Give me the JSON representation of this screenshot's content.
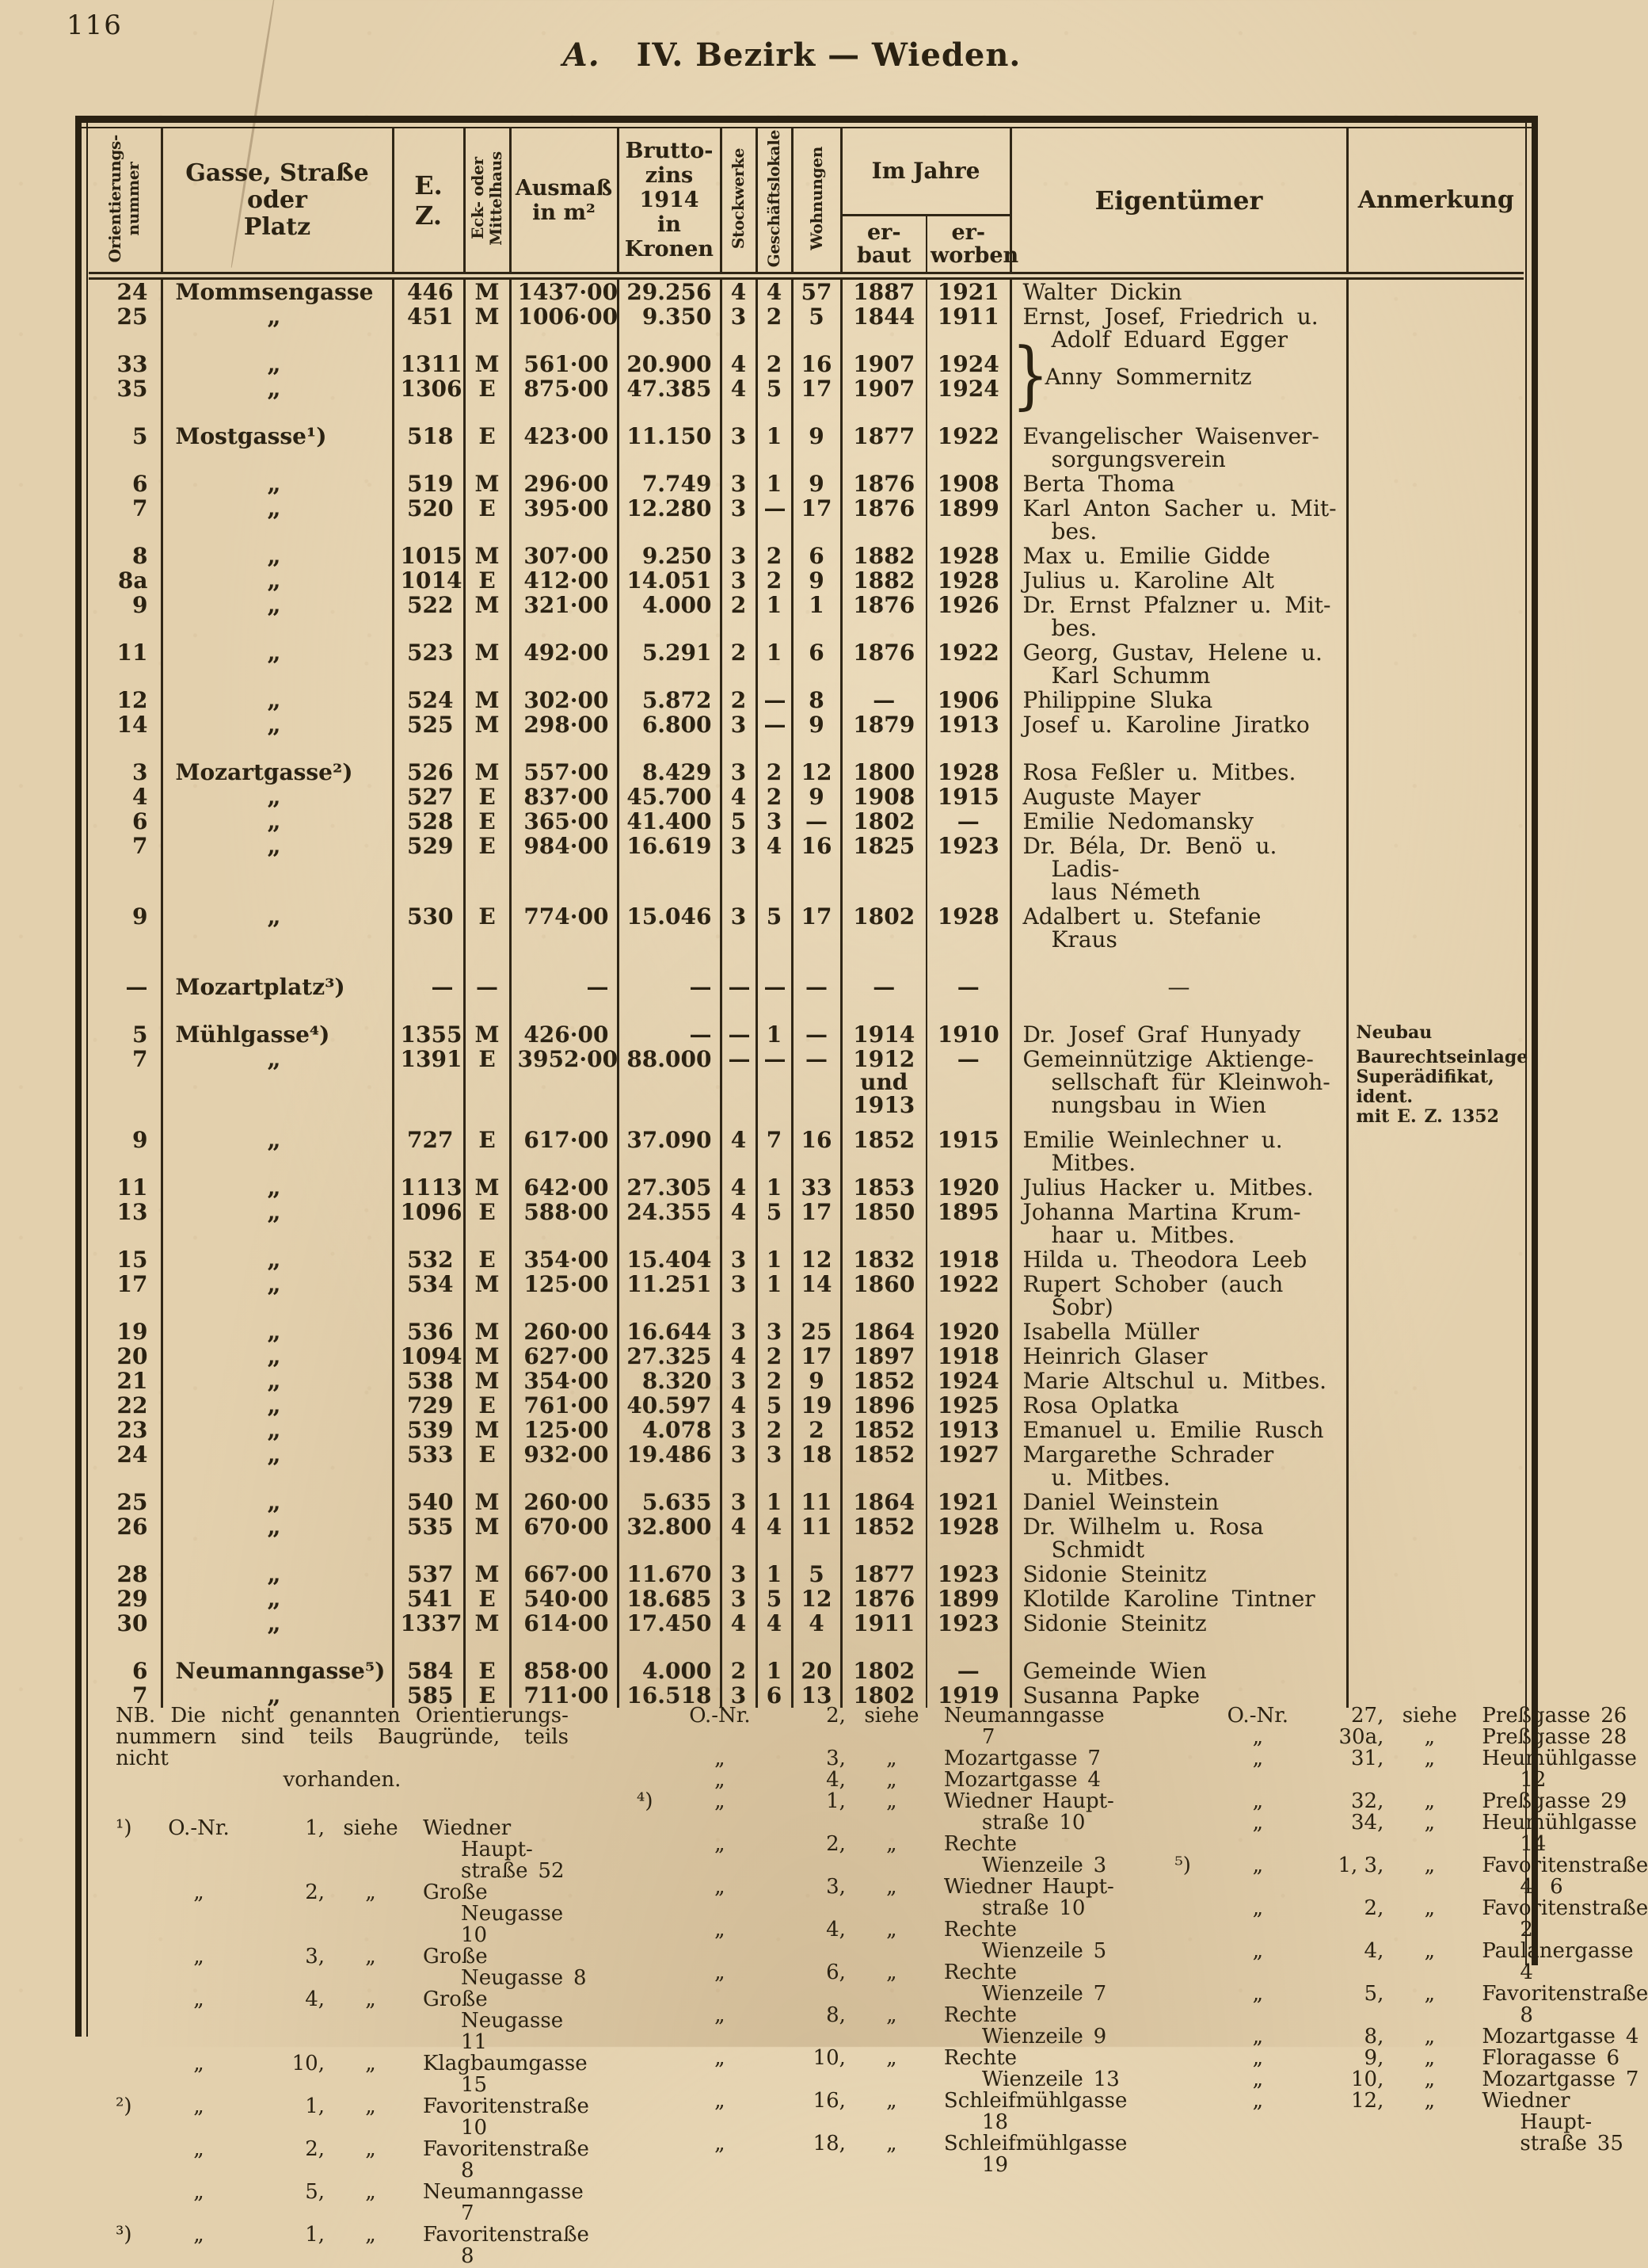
{
  "page": {
    "number": "116",
    "title_prefix": "A.",
    "title": "IV. Bezirk — Wieden."
  },
  "table": {
    "headers": {
      "onr": "Orientierungs-\nnummer",
      "street": "Gasse, Straße oder\nPlatz",
      "ez": "E. Z.",
      "eck": "Eck- oder\nMittelhaus",
      "ausmass": "Ausmaß\nin m²",
      "zins": "Brutto-\nzins 1914\nin\nKronen",
      "stock": "Stockwerke",
      "gesch": "Geschäftslokale",
      "wohn": "Wohnungen",
      "imjahre": "Im Jahre",
      "erbaut": "er-\nbaut",
      "erworben": "er-\nworben",
      "owner": "Eigentümer",
      "anm": "Anmerkung"
    },
    "rows": [
      {
        "onr": "24",
        "street": "Mommsengasse",
        "ez": "446",
        "eck": "M",
        "ausmass": "1437·00",
        "zins": "29.256",
        "st": "4",
        "gl": "4",
        "wo": "57",
        "eb": "1887",
        "ew": "1921",
        "owner": "Walter Dickin",
        "anm": ""
      },
      {
        "onr": "25",
        "street": "„",
        "ez": "451",
        "eck": "M",
        "ausmass": "1006·00",
        "zins": "9.350",
        "st": "3",
        "gl": "2",
        "wo": "5",
        "eb": "1844",
        "ew": "1911",
        "owner": "Ernst, Josef, Friedrich u.\nAdolf Eduard Egger",
        "anm": ""
      },
      {
        "onr": "33",
        "street": "„",
        "ez": "1311",
        "eck": "M",
        "ausmass": "561·00",
        "zins": "20.900",
        "st": "4",
        "gl": "2",
        "wo": "16",
        "eb": "1907",
        "ew": "1924",
        "owner": "Anny Sommernitz",
        "owner_brace": true,
        "owner_rowspan": 2,
        "anm": "",
        "anm_rowspan": 2
      },
      {
        "onr": "35",
        "street": "„",
        "ez": "1306",
        "eck": "E",
        "ausmass": "875·00",
        "zins": "47.385",
        "st": "4",
        "gl": "5",
        "wo": "17",
        "eb": "1907",
        "ew": "1924",
        "owner_skip": true,
        "anm_skip": true
      },
      {
        "gap": true,
        "onr": "5",
        "street": "Mostgasse¹)",
        "ez": "518",
        "eck": "E",
        "ausmass": "423·00",
        "zins": "11.150",
        "st": "3",
        "gl": "1",
        "wo": "9",
        "eb": "1877",
        "ew": "1922",
        "owner": "Evangelischer Waisenver-\nsorgungsverein",
        "anm": ""
      },
      {
        "onr": "6",
        "street": "„",
        "ez": "519",
        "eck": "M",
        "ausmass": "296·00",
        "zins": "7.749",
        "st": "3",
        "gl": "1",
        "wo": "9",
        "eb": "1876",
        "ew": "1908",
        "owner": "Berta Thoma",
        "anm": ""
      },
      {
        "onr": "7",
        "street": "„",
        "ez": "520",
        "eck": "E",
        "ausmass": "395·00",
        "zins": "12.280",
        "st": "3",
        "gl": "—",
        "wo": "17",
        "eb": "1876",
        "ew": "1899",
        "owner": "Karl Anton Sacher u. Mit-\nbes.",
        "anm": ""
      },
      {
        "onr": "8",
        "street": "„",
        "ez": "1015",
        "eck": "M",
        "ausmass": "307·00",
        "zins": "9.250",
        "st": "3",
        "gl": "2",
        "wo": "6",
        "eb": "1882",
        "ew": "1928",
        "owner": "Max u. Emilie Gidde",
        "anm": ""
      },
      {
        "onr": "8a",
        "street": "„",
        "ez": "1014",
        "eck": "E",
        "ausmass": "412·00",
        "zins": "14.051",
        "st": "3",
        "gl": "2",
        "wo": "9",
        "eb": "1882",
        "ew": "1928",
        "owner": "Julius u. Karoline Alt",
        "anm": ""
      },
      {
        "onr": "9",
        "street": "„",
        "ez": "522",
        "eck": "M",
        "ausmass": "321·00",
        "zins": "4.000",
        "st": "2",
        "gl": "1",
        "wo": "1",
        "eb": "1876",
        "ew": "1926",
        "owner": "Dr. Ernst Pfalzner u. Mit-\nbes.",
        "anm": ""
      },
      {
        "onr": "11",
        "street": "„",
        "ez": "523",
        "eck": "M",
        "ausmass": "492·00",
        "zins": "5.291",
        "st": "2",
        "gl": "1",
        "wo": "6",
        "eb": "1876",
        "ew": "1922",
        "owner": "Georg, Gustav, Helene u.\nKarl Schumm",
        "anm": ""
      },
      {
        "onr": "12",
        "street": "„",
        "ez": "524",
        "eck": "M",
        "ausmass": "302·00",
        "zins": "5.872",
        "st": "2",
        "gl": "—",
        "wo": "8",
        "eb": "—",
        "ew": "1906",
        "owner": "Philippine Sluka",
        "anm": ""
      },
      {
        "onr": "14",
        "street": "„",
        "ez": "525",
        "eck": "M",
        "ausmass": "298·00",
        "zins": "6.800",
        "st": "3",
        "gl": "—",
        "wo": "9",
        "eb": "1879",
        "ew": "1913",
        "owner": "Josef u. Karoline Jiratko",
        "anm": ""
      },
      {
        "gap": true,
        "onr": "3",
        "street": "Mozartgasse²)",
        "ez": "526",
        "eck": "M",
        "ausmass": "557·00",
        "zins": "8.429",
        "st": "3",
        "gl": "2",
        "wo": "12",
        "eb": "1800",
        "ew": "1928",
        "owner": "Rosa Feßler u. Mitbes.",
        "anm": ""
      },
      {
        "onr": "4",
        "street": "„",
        "ez": "527",
        "eck": "E",
        "ausmass": "837·00",
        "zins": "45.700",
        "st": "4",
        "gl": "2",
        "wo": "9",
        "eb": "1908",
        "ew": "1915",
        "owner": "Auguste Mayer",
        "anm": ""
      },
      {
        "onr": "6",
        "street": "„",
        "ez": "528",
        "eck": "E",
        "ausmass": "365·00",
        "zins": "41.400",
        "st": "5",
        "gl": "3",
        "wo": "—",
        "eb": "1802",
        "ew": "—",
        "owner": "Emilie Nedomansky",
        "anm": ""
      },
      {
        "onr": "7",
        "street": "„",
        "ez": "529",
        "eck": "E",
        "ausmass": "984·00",
        "zins": "16.619",
        "st": "3",
        "gl": "4",
        "wo": "16",
        "eb": "1825",
        "ew": "1923",
        "owner": "Dr. Béla, Dr. Benö u. Ladis-\nlaus Németh",
        "anm": ""
      },
      {
        "onr": "9",
        "street": "„",
        "ez": "530",
        "eck": "E",
        "ausmass": "774·00",
        "zins": "15.046",
        "st": "3",
        "gl": "5",
        "wo": "17",
        "eb": "1802",
        "ew": "1928",
        "owner": "Adalbert u. Stefanie Kraus",
        "anm": ""
      },
      {
        "gap": true,
        "onr": "—",
        "street": "Mozartplatz³)",
        "ez": "—",
        "eck": "—",
        "ausmass": "—",
        "zins": "—",
        "st": "—",
        "gl": "—",
        "wo": "—",
        "eb": "—",
        "ew": "—",
        "owner": "—",
        "anm": ""
      },
      {
        "gap": true,
        "onr": "5",
        "street": "Mühlgasse⁴)",
        "ez": "1355",
        "eck": "M",
        "ausmass": "426·00",
        "zins": "—",
        "st": "—",
        "gl": "1",
        "wo": "—",
        "eb": "1914",
        "ew": "1910",
        "owner": "Dr. Josef Graf Hunyady",
        "anm": "Neubau"
      },
      {
        "onr": "7",
        "street": "„",
        "ez": "1391",
        "eck": "E",
        "ausmass": "3952·00",
        "zins": "88.000",
        "st": "—",
        "gl": "—",
        "wo": "—",
        "eb": "1912\nund\n1913",
        "ew": "—",
        "owner": "Gemeinnützige Aktienge-\nsellschaft für Kleinwoh-\nnungsbau in Wien",
        "anm": "Baurechtseinlage\nSuperädifikat, ident.\nmit E. Z. 1352"
      },
      {
        "onr": "9",
        "street": "„",
        "ez": "727",
        "eck": "E",
        "ausmass": "617·00",
        "zins": "37.090",
        "st": "4",
        "gl": "7",
        "wo": "16",
        "eb": "1852",
        "ew": "1915",
        "owner": "Emilie Weinlechner u.\nMitbes.",
        "anm": ""
      },
      {
        "onr": "11",
        "street": "„",
        "ez": "1113",
        "eck": "M",
        "ausmass": "642·00",
        "zins": "27.305",
        "st": "4",
        "gl": "1",
        "wo": "33",
        "eb": "1853",
        "ew": "1920",
        "owner": "Julius Hacker u. Mitbes.",
        "anm": ""
      },
      {
        "onr": "13",
        "street": "„",
        "ez": "1096",
        "eck": "E",
        "ausmass": "588·00",
        "zins": "24.355",
        "st": "4",
        "gl": "5",
        "wo": "17",
        "eb": "1850",
        "ew": "1895",
        "owner": "Johanna Martina Krum-\nhaar u. Mitbes.",
        "anm": ""
      },
      {
        "onr": "15",
        "street": "„",
        "ez": "532",
        "eck": "E",
        "ausmass": "354·00",
        "zins": "15.404",
        "st": "3",
        "gl": "1",
        "wo": "12",
        "eb": "1832",
        "ew": "1918",
        "owner": "Hilda u. Theodora Leeb",
        "anm": ""
      },
      {
        "onr": "17",
        "street": "„",
        "ez": "534",
        "eck": "M",
        "ausmass": "125·00",
        "zins": "11.251",
        "st": "3",
        "gl": "1",
        "wo": "14",
        "eb": "1860",
        "ew": "1922",
        "owner": "Rupert Schober (auch Šobr)",
        "anm": ""
      },
      {
        "onr": "19",
        "street": "„",
        "ez": "536",
        "eck": "M",
        "ausmass": "260·00",
        "zins": "16.644",
        "st": "3",
        "gl": "3",
        "wo": "25",
        "eb": "1864",
        "ew": "1920",
        "owner": "Isabella Müller",
        "anm": ""
      },
      {
        "onr": "20",
        "street": "„",
        "ez": "1094",
        "eck": "M",
        "ausmass": "627·00",
        "zins": "27.325",
        "st": "4",
        "gl": "2",
        "wo": "17",
        "eb": "1897",
        "ew": "1918",
        "owner": "Heinrich Glaser",
        "anm": ""
      },
      {
        "onr": "21",
        "street": "„",
        "ez": "538",
        "eck": "M",
        "ausmass": "354·00",
        "zins": "8.320",
        "st": "3",
        "gl": "2",
        "wo": "9",
        "eb": "1852",
        "ew": "1924",
        "owner": "Marie Altschul u. Mitbes.",
        "anm": ""
      },
      {
        "onr": "22",
        "street": "„",
        "ez": "729",
        "eck": "E",
        "ausmass": "761·00",
        "zins": "40.597",
        "st": "4",
        "gl": "5",
        "wo": "19",
        "eb": "1896",
        "ew": "1925",
        "owner": "Rosa Oplatka",
        "anm": ""
      },
      {
        "onr": "23",
        "street": "„",
        "ez": "539",
        "eck": "M",
        "ausmass": "125·00",
        "zins": "4.078",
        "st": "3",
        "gl": "2",
        "wo": "2",
        "eb": "1852",
        "ew": "1913",
        "owner": "Emanuel u. Emilie Rusch",
        "anm": ""
      },
      {
        "onr": "24",
        "street": "„",
        "ez": "533",
        "eck": "E",
        "ausmass": "932·00",
        "zins": "19.486",
        "st": "3",
        "gl": "3",
        "wo": "18",
        "eb": "1852",
        "ew": "1927",
        "owner": "Margarethe Schrader\nu. Mitbes.",
        "anm": ""
      },
      {
        "onr": "25",
        "street": "„",
        "ez": "540",
        "eck": "M",
        "ausmass": "260·00",
        "zins": "5.635",
        "st": "3",
        "gl": "1",
        "wo": "11",
        "eb": "1864",
        "ew": "1921",
        "owner": "Daniel Weinstein",
        "anm": ""
      },
      {
        "onr": "26",
        "street": "„",
        "ez": "535",
        "eck": "M",
        "ausmass": "670·00",
        "zins": "32.800",
        "st": "4",
        "gl": "4",
        "wo": "11",
        "eb": "1852",
        "ew": "1928",
        "owner": "Dr. Wilhelm u. Rosa\nSchmidt",
        "anm": ""
      },
      {
        "onr": "28",
        "street": "„",
        "ez": "537",
        "eck": "M",
        "ausmass": "667·00",
        "zins": "11.670",
        "st": "3",
        "gl": "1",
        "wo": "5",
        "eb": "1877",
        "ew": "1923",
        "owner": "Sidonie Steinitz",
        "anm": ""
      },
      {
        "onr": "29",
        "street": "„",
        "ez": "541",
        "eck": "E",
        "ausmass": "540·00",
        "zins": "18.685",
        "st": "3",
        "gl": "5",
        "wo": "12",
        "eb": "1876",
        "ew": "1899",
        "owner": "Klotilde Karoline Tintner",
        "anm": ""
      },
      {
        "onr": "30",
        "street": "„",
        "ez": "1337",
        "eck": "M",
        "ausmass": "614·00",
        "zins": "17.450",
        "st": "4",
        "gl": "4",
        "wo": "4",
        "eb": "1911",
        "ew": "1923",
        "owner": "Sidonie Steinitz",
        "anm": ""
      },
      {
        "gap": true,
        "onr": "6",
        "street": "Neumanngasse⁵)",
        "ez": "584",
        "eck": "E",
        "ausmass": "858·00",
        "zins": "4.000",
        "st": "2",
        "gl": "1",
        "wo": "20",
        "eb": "1802",
        "ew": "—",
        "owner": "Gemeinde Wien",
        "anm": ""
      },
      {
        "onr": "7",
        "street": "„",
        "ez": "585",
        "eck": "E",
        "ausmass": "711·00",
        "zins": "16.518",
        "st": "3",
        "gl": "6",
        "wo": "13",
        "eb": "1802",
        "ew": "1919",
        "owner": "Susanna Papke",
        "anm": ""
      }
    ]
  },
  "footnotes": {
    "nb_lines": [
      "NB. Die nicht genannten Orientierungs-",
      "nummern sind teils Baugründe, teils nicht",
      "vorhanden."
    ],
    "col1": [
      [
        "¹)",
        "O.-Nr.",
        "1,",
        "siehe",
        "Wiedner Haupt-\nstraße 52"
      ],
      [
        "",
        "„",
        "2,",
        "„",
        "Große Neugasse 10"
      ],
      [
        "",
        "„",
        "3,",
        "„",
        "Große Neugasse 8"
      ],
      [
        "",
        "„",
        "4,",
        "„",
        "Große Neugasse 11"
      ],
      [
        "",
        "„",
        "10,",
        "„",
        "Klagbaumgasse 15"
      ],
      [
        "²)",
        "„",
        "1,",
        "„",
        "Favoritenstraße 10"
      ],
      [
        "",
        "„",
        "2,",
        "„",
        "Favoritenstraße 8"
      ],
      [
        "",
        "„",
        "5,",
        "„",
        "Neumanngasse 7"
      ],
      [
        "³)",
        "„",
        "1,",
        "„",
        "Favoritenstraße 8"
      ]
    ],
    "col2": [
      [
        "",
        "O.-Nr.",
        "2,",
        "siehe",
        "Neumanngasse 7"
      ],
      [
        "",
        "„",
        "3,",
        "„",
        "Mozartgasse 7"
      ],
      [
        "",
        "„",
        "4,",
        "„",
        "Mozartgasse 4"
      ],
      [
        "⁴)",
        "„",
        "1,",
        "„",
        "Wiedner Haupt-\nstraße 10"
      ],
      [
        "",
        "„",
        "2,",
        "„",
        "Rechte Wienzeile 3"
      ],
      [
        "",
        "„",
        "3,",
        "„",
        "Wiedner Haupt-\nstraße 10"
      ],
      [
        "",
        "„",
        "4,",
        "„",
        "Rechte Wienzeile 5"
      ],
      [
        "",
        "„",
        "6,",
        "„",
        "Rechte Wienzeile 7"
      ],
      [
        "",
        "„",
        "8,",
        "„",
        "Rechte Wienzeile 9"
      ],
      [
        "",
        "„",
        "10,",
        "„",
        "Rechte Wienzeile 13"
      ],
      [
        "",
        "„",
        "16,",
        "„",
        "Schleifmühlgasse 18"
      ],
      [
        "",
        "„",
        "18,",
        "„",
        "Schleifmühlgasse 19"
      ]
    ],
    "col3": [
      [
        "",
        "O.-Nr.",
        "27,",
        "siehe",
        "Preßgasse 26"
      ],
      [
        "",
        "„",
        "30a,",
        "„",
        "Preßgasse 28"
      ],
      [
        "",
        "„",
        "31,",
        "„",
        "Heumühlgasse 12"
      ],
      [
        "",
        "„",
        "32,",
        "„",
        "Preßgasse 29"
      ],
      [
        "",
        "„",
        "34,",
        "„",
        "Heumühlgasse 14"
      ],
      [
        "⁵)",
        "„",
        "1, 3,",
        "„",
        "Favoritenstraße 4. 6"
      ],
      [
        "",
        "„",
        "2,",
        "„",
        "Favoritenstraße 2"
      ],
      [
        "",
        "„",
        "4,",
        "„",
        "Paulanergasse 4"
      ],
      [
        "",
        "„",
        "5,",
        "„",
        "Favoritenstraße 8"
      ],
      [
        "",
        "„",
        "8,",
        "„",
        "Mozartgasse 4"
      ],
      [
        "",
        "„",
        "9,",
        "„",
        "Floragasse 6"
      ],
      [
        "",
        "„",
        "10,",
        "„",
        "Mozartgasse 7"
      ],
      [
        "",
        "„",
        "12,",
        "„",
        "Wiedner Haupt-\nstraße 35"
      ]
    ]
  }
}
